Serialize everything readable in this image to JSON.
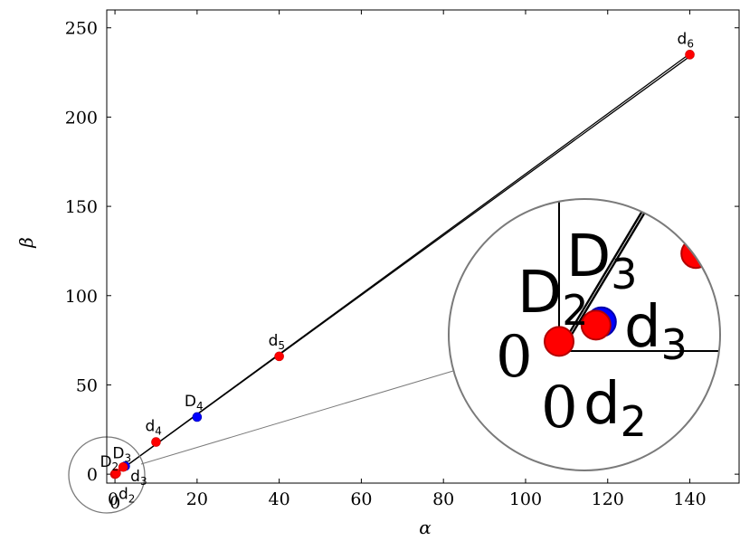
{
  "chart_data": {
    "type": "line",
    "xlabel": "α",
    "ylabel": "β",
    "xlim": [
      -2,
      152
    ],
    "ylim": [
      -5,
      260
    ],
    "x_ticks": [
      {
        "value": 0,
        "label": "0"
      },
      {
        "value": 20,
        "label": "20"
      },
      {
        "value": 40,
        "label": "40"
      },
      {
        "value": 60,
        "label": "60"
      },
      {
        "value": 80,
        "label": "80"
      },
      {
        "value": 100,
        "label": "100"
      },
      {
        "value": 120,
        "label": "120"
      },
      {
        "value": 140,
        "label": "140"
      }
    ],
    "y_ticks": [
      {
        "value": 0,
        "label": "0"
      },
      {
        "value": 50,
        "label": "50"
      },
      {
        "value": 100,
        "label": "100"
      },
      {
        "value": 150,
        "label": "150"
      },
      {
        "value": 200,
        "label": "200"
      },
      {
        "value": 250,
        "label": "250"
      }
    ],
    "lines": [
      {
        "from": [
          0,
          0
        ],
        "to": [
          140,
          234
        ]
      },
      {
        "from": [
          0,
          0
        ],
        "to": [
          140,
          235.5
        ]
      }
    ],
    "points": [
      {
        "id": "pt-0",
        "base": "",
        "sub": "",
        "x": 0,
        "y": 0,
        "color": "#ff0000"
      },
      {
        "id": "pt-d2",
        "base": "d",
        "sub": "2",
        "x": 0.2,
        "y": 0.3,
        "color": "#ff0000"
      },
      {
        "id": "pt-D2",
        "base": "D",
        "sub": "2",
        "x": 0.3,
        "y": 0.5,
        "color": "#ff0000"
      },
      {
        "id": "pt-D3",
        "base": "D",
        "sub": "3",
        "x": 2.5,
        "y": 4.5,
        "color": "#0000ff"
      },
      {
        "id": "pt-d3",
        "base": "d",
        "sub": "3",
        "x": 2,
        "y": 4,
        "color": "#ff0000"
      },
      {
        "id": "pt-d4",
        "base": "d",
        "sub": "4",
        "x": 10,
        "y": 18,
        "color": "#ff0000"
      },
      {
        "id": "pt-D4",
        "base": "D",
        "sub": "4",
        "x": 20,
        "y": 32,
        "color": "#0000ff"
      },
      {
        "id": "pt-d5",
        "base": "d",
        "sub": "5",
        "x": 40,
        "y": 66,
        "color": "#ff0000"
      },
      {
        "id": "pt-d6",
        "base": "d",
        "sub": "6",
        "x": 140,
        "y": 235,
        "color": "#ff0000"
      }
    ],
    "zero_label": "0",
    "zoom_zero_label": "0"
  }
}
